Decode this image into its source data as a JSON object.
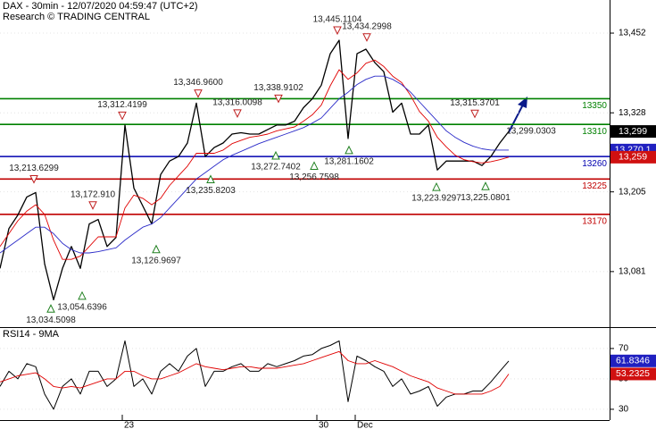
{
  "chart_data": [
    {
      "type": "line",
      "title": "DAX - 30min - 12/07/2020 04:59:47 (UTC+2)",
      "subtitle": "Research © TRADING CENTRAL",
      "x": [
        0,
        1,
        2,
        3,
        4,
        5,
        6,
        7,
        8,
        9,
        10,
        11,
        12,
        13,
        14,
        15,
        16,
        17,
        18,
        19,
        20,
        21,
        22,
        23,
        24,
        25,
        26,
        27,
        28,
        29,
        30,
        31,
        32,
        33,
        34,
        35,
        36,
        37,
        38,
        39,
        40,
        41,
        42,
        43,
        44,
        45,
        46,
        47,
        48,
        49,
        50,
        51,
        52,
        53,
        54,
        55,
        56,
        57
      ],
      "xlim": [
        0,
        68.3
      ],
      "xticks": [
        {
          "value": 13.7,
          "label": "23"
        },
        {
          "value": 35.5,
          "label": "30"
        },
        {
          "value": 39.8,
          "label": "Dec"
        }
      ],
      "ylim": [
        12996,
        13503.5
      ],
      "yticks": [
        {
          "value": 13452,
          "label": "13,452"
        },
        {
          "value": 13328,
          "label": "13,328"
        },
        {
          "value": 13205,
          "label": "13,205"
        },
        {
          "value": 13081,
          "label": "13,081"
        }
      ],
      "series": [
        {
          "color": "#000000",
          "width": 1.3,
          "values": [
            13086,
            13148,
            13169,
            13197,
            13204,
            13093,
            13037,
            13086,
            13120,
            13086,
            13155,
            13162,
            13120,
            13134,
            13309,
            13211,
            13183,
            13155,
            13232,
            13253,
            13260,
            13281,
            13343,
            13260,
            13274,
            13281,
            13295,
            13297,
            13295,
            13295,
            13302,
            13309,
            13309,
            13315,
            13336,
            13350,
            13371,
            13420,
            13441,
            13288,
            13420,
            13427,
            13406,
            13392,
            13329,
            13343,
            13295,
            13295,
            13309,
            13239,
            13253,
            13253,
            13253,
            13253,
            13246,
            13260,
            13281,
            13299
          ]
        },
        {
          "color": "#e00000",
          "width": 0.9,
          "values": [
            13120,
            13140,
            13160,
            13175,
            13185,
            13170,
            13130,
            13100,
            13100,
            13105,
            13120,
            13135,
            13135,
            13135,
            13180,
            13200,
            13195,
            13185,
            13195,
            13215,
            13230,
            13245,
            13265,
            13265,
            13265,
            13270,
            13280,
            13285,
            13290,
            13292,
            13295,
            13300,
            13303,
            13306,
            13315,
            13325,
            13340,
            13370,
            13395,
            13380,
            13390,
            13405,
            13410,
            13400,
            13385,
            13375,
            13355,
            13330,
            13315,
            13290,
            13275,
            13262,
            13255,
            13252,
            13250,
            13252,
            13255,
            13259
          ]
        },
        {
          "color": "#2a2ac8",
          "width": 0.9,
          "values": [
            13110,
            13120,
            13130,
            13140,
            13150,
            13150,
            13140,
            13125,
            13115,
            13110,
            13110,
            13112,
            13115,
            13118,
            13130,
            13140,
            13150,
            13155,
            13165,
            13180,
            13195,
            13210,
            13225,
            13235,
            13245,
            13255,
            13262,
            13268,
            13274,
            13280,
            13285,
            13290,
            13295,
            13300,
            13305,
            13312,
            13320,
            13335,
            13350,
            13360,
            13372,
            13380,
            13385,
            13385,
            13380,
            13372,
            13360,
            13345,
            13330,
            13315,
            13300,
            13290,
            13282,
            13276,
            13272,
            13270,
            13270,
            13270.1
          ]
        }
      ],
      "levels": [
        {
          "value": 13350,
          "color": "#008000"
        },
        {
          "value": 13310,
          "color": "#008000"
        },
        {
          "value": 13260,
          "color": "#0000b0"
        },
        {
          "value": 13225,
          "color": "#c00000"
        },
        {
          "value": 13170,
          "color": "#c00000"
        }
      ],
      "annotations": [
        {
          "x": 3.8,
          "value": 13213.6299,
          "label": "13,213.6299",
          "marker": "down"
        },
        {
          "x": 5.7,
          "value": 13034.5098,
          "label": "13,034.5098",
          "marker": "up"
        },
        {
          "x": 9.2,
          "value": 13054.6396,
          "label": "13,054.6396",
          "marker": "up"
        },
        {
          "x": 10.4,
          "value": 13172.91,
          "label": "13,172.910",
          "marker": "down"
        },
        {
          "x": 13.7,
          "value": 13312.4199,
          "label": "13,312.4199",
          "marker": "down"
        },
        {
          "x": 17.5,
          "value": 13126.9697,
          "label": "13,126.9697",
          "marker": "up"
        },
        {
          "x": 22.2,
          "value": 13346.96,
          "label": "13,346.9600",
          "marker": "down"
        },
        {
          "x": 23.6,
          "value": 13235.8203,
          "label": "13,235.8203",
          "marker": "up"
        },
        {
          "x": 26.6,
          "value": 13316.0098,
          "label": "13,316.0098",
          "marker": "down"
        },
        {
          "x": 31.2,
          "value": 13338.9102,
          "label": "13,338.9102",
          "marker": "down"
        },
        {
          "x": 30.9,
          "value": 13272.7402,
          "label": "13,272.7402",
          "marker": "up"
        },
        {
          "x": 35.2,
          "value": 13256.7598,
          "label": "13,256.7598",
          "marker": "up"
        },
        {
          "x": 37.8,
          "value": 13445.1104,
          "label": "13,445.1104",
          "marker": "down"
        },
        {
          "x": 41.1,
          "value": 13434.2998,
          "label": "13,434.2998",
          "marker": "down"
        },
        {
          "x": 39.1,
          "value": 13281.1602,
          "label": "13,281.1602",
          "marker": "up"
        },
        {
          "x": 48.9,
          "value": 13223.9297,
          "label": "13,223.9297",
          "marker": "up"
        },
        {
          "x": 54.4,
          "value": 13225.0801,
          "label": "13,225.0801",
          "marker": "up"
        },
        {
          "x": 53.2,
          "value": 13315.3701,
          "label": "13,315.3701",
          "marker": "down"
        }
      ],
      "target": {
        "x": 59.5,
        "value": 13299.0303,
        "label": "13,299.0303"
      },
      "price_labels": [
        {
          "value": 13299,
          "label": "13,299",
          "color": "#000000"
        },
        {
          "value": 13270.1,
          "label": "13,270.1",
          "color": "#2020c0"
        },
        {
          "value": 13259,
          "label": "13,259",
          "color": "#d01010"
        }
      ]
    },
    {
      "type": "line",
      "title": "RSI14 - 9MA",
      "x": [
        0,
        1,
        2,
        3,
        4,
        5,
        6,
        7,
        8,
        9,
        10,
        11,
        12,
        13,
        14,
        15,
        16,
        17,
        18,
        19,
        20,
        21,
        22,
        23,
        24,
        25,
        26,
        27,
        28,
        29,
        30,
        31,
        32,
        33,
        34,
        35,
        36,
        37,
        38,
        39,
        40,
        41,
        42,
        43,
        44,
        45,
        46,
        47,
        48,
        49,
        50,
        51,
        52,
        53,
        54,
        55,
        56,
        57
      ],
      "xlim": [
        0,
        68.3
      ],
      "ylim": [
        22.9,
        82.9
      ],
      "yticks": [
        70,
        50,
        30
      ],
      "series": [
        {
          "color": "#000000",
          "width": 1,
          "values": [
            45,
            55,
            50,
            60,
            58,
            40,
            30,
            45,
            50,
            40,
            55,
            55,
            45,
            50,
            75,
            45,
            50,
            40,
            55,
            60,
            55,
            65,
            70,
            45,
            55,
            55,
            58,
            60,
            55,
            55,
            60,
            58,
            60,
            62,
            65,
            66,
            70,
            72,
            75,
            35,
            65,
            62,
            58,
            55,
            45,
            50,
            40,
            42,
            45,
            32,
            38,
            40,
            40,
            42,
            42,
            48,
            55,
            61.8
          ]
        },
        {
          "color": "#e00000",
          "width": 0.9,
          "values": [
            48,
            50,
            52,
            53,
            54,
            50,
            45,
            44,
            45,
            44,
            46,
            48,
            50,
            50,
            55,
            55,
            52,
            50,
            50,
            52,
            54,
            57,
            60,
            58,
            57,
            56,
            57,
            58,
            58,
            57,
            57,
            57,
            58,
            59,
            60,
            62,
            64,
            66,
            68,
            62,
            60,
            60,
            62,
            60,
            58,
            55,
            52,
            50,
            48,
            44,
            42,
            40,
            40,
            40,
            40,
            42,
            45,
            53.2
          ]
        }
      ],
      "price_labels": [
        {
          "value": 61.8346,
          "label": "61.8346",
          "color": "#2020c0"
        },
        {
          "value": 53.2325,
          "label": "53.2325",
          "color": "#d01010"
        }
      ]
    }
  ]
}
